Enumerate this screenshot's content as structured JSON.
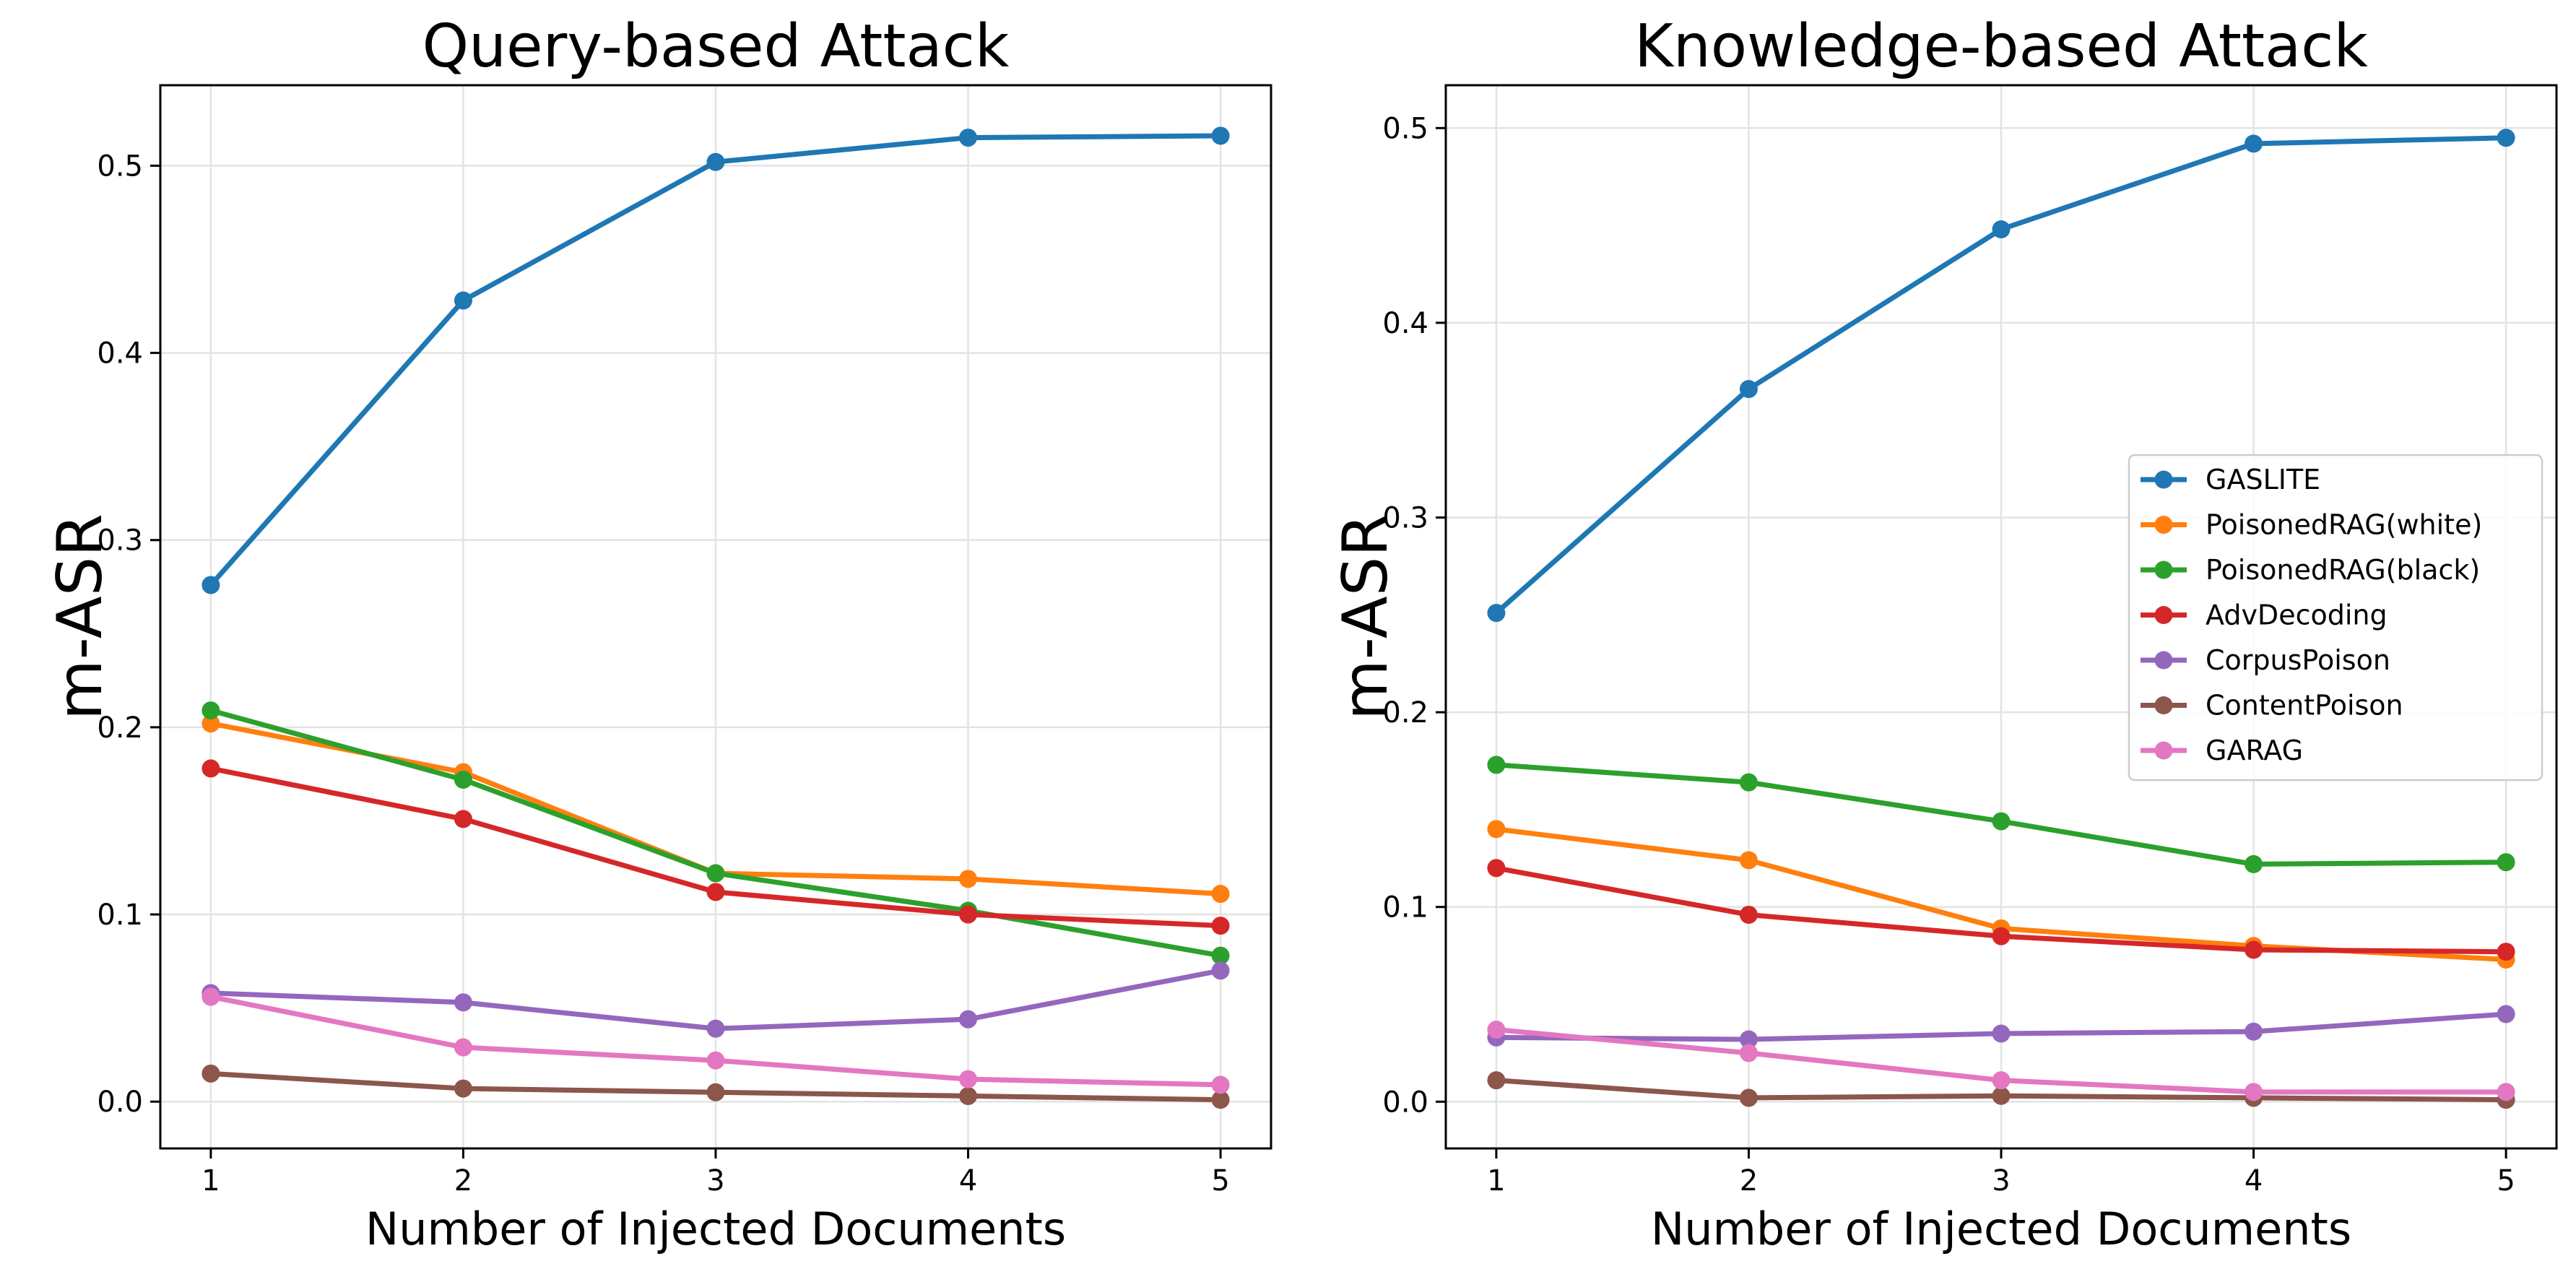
{
  "chart_data": [
    {
      "type": "line",
      "title": "Query-based Attack",
      "xlabel": "Number of Injected Documents",
      "ylabel": "m-ASR",
      "x": [
        1,
        2,
        3,
        4,
        5
      ],
      "xticks": [
        "1",
        "2",
        "3",
        "4",
        "5"
      ],
      "yticks": [
        0.0,
        0.1,
        0.2,
        0.3,
        0.4,
        0.5
      ],
      "ytick_labels": [
        "0.0",
        "0.1",
        "0.2",
        "0.3",
        "0.4",
        "0.5"
      ],
      "xlim": [
        0.8,
        5.2
      ],
      "ylim": [
        -0.025,
        0.543
      ],
      "grid": true,
      "series": [
        {
          "name": "GASLITE",
          "color": "#1f77b4",
          "values": [
            0.276,
            0.428,
            0.502,
            0.515,
            0.516
          ]
        },
        {
          "name": "PoisonedRAG(white)",
          "color": "#ff7f0e",
          "values": [
            0.202,
            0.176,
            0.122,
            0.119,
            0.111
          ]
        },
        {
          "name": "PoisonedRAG(black)",
          "color": "#2ca02c",
          "values": [
            0.209,
            0.172,
            0.122,
            0.102,
            0.078
          ]
        },
        {
          "name": "AdvDecoding",
          "color": "#d62728",
          "values": [
            0.178,
            0.151,
            0.112,
            0.1,
            0.094
          ]
        },
        {
          "name": "CorpusPoison",
          "color": "#9467bd",
          "values": [
            0.058,
            0.053,
            0.039,
            0.044,
            0.07
          ]
        },
        {
          "name": "ContentPoison",
          "color": "#8c564b",
          "values": [
            0.015,
            0.007,
            0.005,
            0.003,
            0.001
          ]
        },
        {
          "name": "GARAG",
          "color": "#e377c2",
          "values": [
            0.056,
            0.029,
            0.022,
            0.012,
            0.009
          ]
        }
      ]
    },
    {
      "type": "line",
      "title": "Knowledge-based Attack",
      "xlabel": "Number of Injected Documents",
      "ylabel": "m-ASR",
      "x": [
        1,
        2,
        3,
        4,
        5
      ],
      "xticks": [
        "1",
        "2",
        "3",
        "4",
        "5"
      ],
      "yticks": [
        0.0,
        0.1,
        0.2,
        0.3,
        0.4,
        0.5
      ],
      "ytick_labels": [
        "0.0",
        "0.1",
        "0.2",
        "0.3",
        "0.4",
        "0.5"
      ],
      "xlim": [
        0.8,
        5.2
      ],
      "ylim": [
        -0.024,
        0.522
      ],
      "grid": true,
      "legend": "center-right",
      "series": [
        {
          "name": "GASLITE",
          "color": "#1f77b4",
          "values": [
            0.251,
            0.366,
            0.448,
            0.492,
            0.495
          ]
        },
        {
          "name": "PoisonedRAG(white)",
          "color": "#ff7f0e",
          "values": [
            0.14,
            0.124,
            0.089,
            0.08,
            0.073
          ]
        },
        {
          "name": "PoisonedRAG(black)",
          "color": "#2ca02c",
          "values": [
            0.173,
            0.164,
            0.144,
            0.122,
            0.123
          ]
        },
        {
          "name": "AdvDecoding",
          "color": "#d62728",
          "values": [
            0.12,
            0.096,
            0.085,
            0.078,
            0.077
          ]
        },
        {
          "name": "CorpusPoison",
          "color": "#9467bd",
          "values": [
            0.033,
            0.032,
            0.035,
            0.036,
            0.045
          ]
        },
        {
          "name": "ContentPoison",
          "color": "#8c564b",
          "values": [
            0.011,
            0.002,
            0.003,
            0.002,
            0.001
          ]
        },
        {
          "name": "GARAG",
          "color": "#e377c2",
          "values": [
            0.037,
            0.025,
            0.011,
            0.005,
            0.005
          ]
        }
      ]
    }
  ]
}
